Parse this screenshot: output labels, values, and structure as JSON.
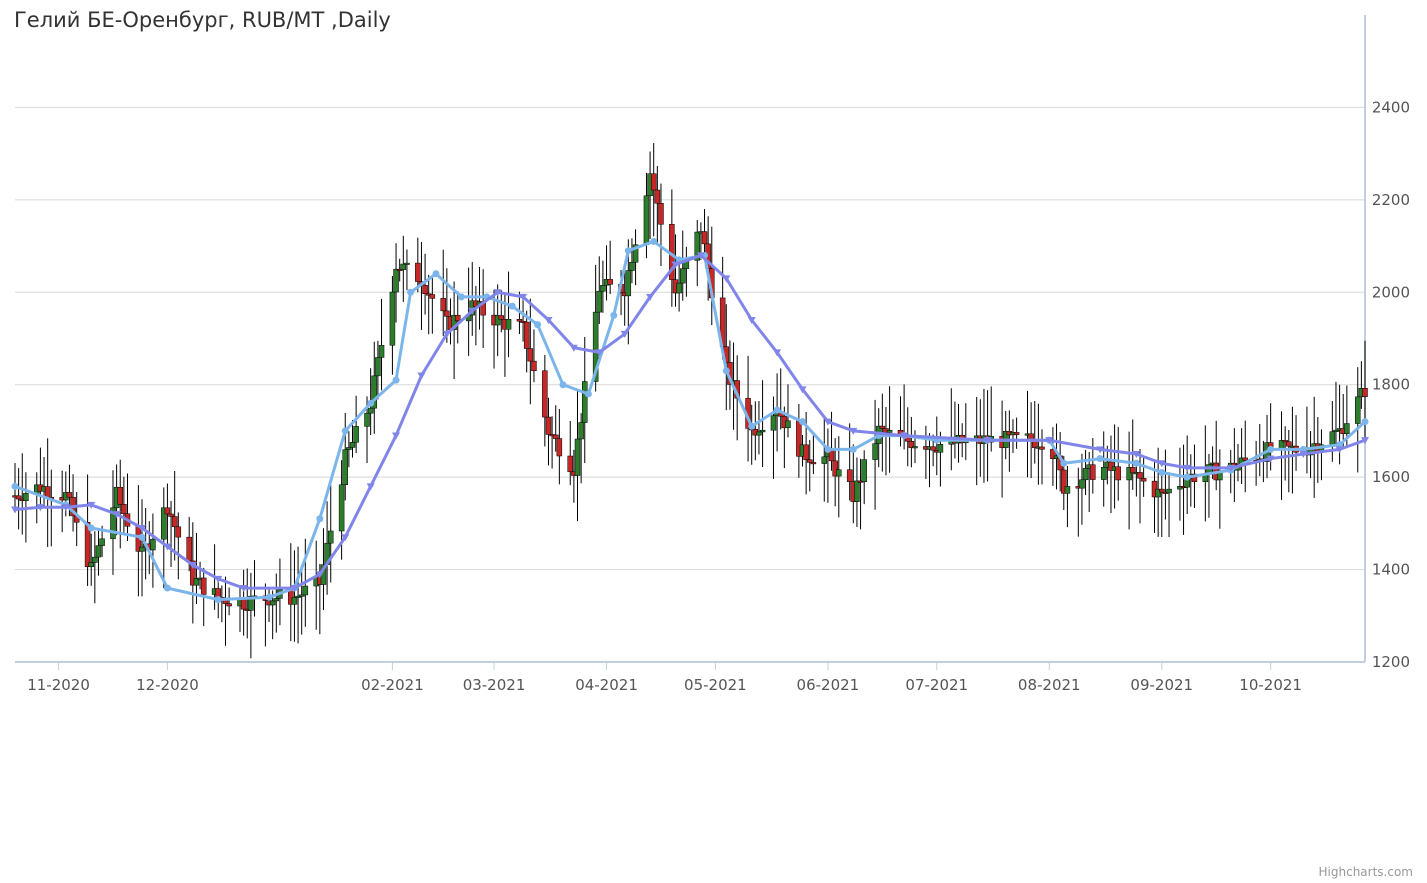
{
  "title": "Гелий БЕ-Оренбург, RUB/MT ,Daily",
  "credits": "Highcharts.com",
  "chart_data": {
    "type": "candlestick",
    "ylim": [
      1200,
      2600
    ],
    "y_ticks": [
      1200,
      1400,
      1600,
      1800,
      2000,
      2200,
      2400
    ],
    "x_ticks": [
      "11-2020",
      "12-2020",
      "02-2021",
      "03-2021",
      "04-2021",
      "05-2021",
      "06-2021",
      "07-2021",
      "08-2021",
      "09-2021",
      "10-2021"
    ],
    "grid": true,
    "colors": {
      "up": "#2c7d2c",
      "down": "#c62828",
      "wick": "#000000",
      "sma_fast": "#7cb5ec",
      "sma_slow": "#8085e9",
      "grid": "#d8d8d8",
      "axis": "#c0d0e0"
    },
    "date_range": [
      "2020-10-20",
      "2021-10-27"
    ],
    "candle_anchors": [
      {
        "date": "2020-10-20",
        "close": 1560
      },
      {
        "date": "2020-10-27",
        "close": 1580
      },
      {
        "date": "2020-11-03",
        "close": 1560
      },
      {
        "date": "2020-11-10",
        "close": 1400
      },
      {
        "date": "2020-11-17",
        "close": 1560
      },
      {
        "date": "2020-11-24",
        "close": 1430
      },
      {
        "date": "2020-12-01",
        "close": 1540
      },
      {
        "date": "2020-12-08",
        "close": 1380
      },
      {
        "date": "2020-12-15",
        "close": 1340
      },
      {
        "date": "2020-12-22",
        "close": 1330
      },
      {
        "date": "2020-12-29",
        "close": 1340
      },
      {
        "date": "2021-01-05",
        "close": 1340
      },
      {
        "date": "2021-01-12",
        "close": 1370
      },
      {
        "date": "2021-01-19",
        "close": 1640
      },
      {
        "date": "2021-01-26",
        "close": 1760
      },
      {
        "date": "2021-02-02",
        "close": 2060
      },
      {
        "date": "2021-02-09",
        "close": 2030
      },
      {
        "date": "2021-02-16",
        "close": 1930
      },
      {
        "date": "2021-02-23",
        "close": 1970
      },
      {
        "date": "2021-03-02",
        "close": 1940
      },
      {
        "date": "2021-03-09",
        "close": 1920
      },
      {
        "date": "2021-03-16",
        "close": 1700
      },
      {
        "date": "2021-03-23",
        "close": 1620
      },
      {
        "date": "2021-03-30",
        "close": 2010
      },
      {
        "date": "2021-04-06",
        "close": 2010
      },
      {
        "date": "2021-04-13",
        "close": 2260
      },
      {
        "date": "2021-04-20",
        "close": 2000
      },
      {
        "date": "2021-04-27",
        "close": 2140
      },
      {
        "date": "2021-05-04",
        "close": 1830
      },
      {
        "date": "2021-05-11",
        "close": 1700
      },
      {
        "date": "2021-05-18",
        "close": 1750
      },
      {
        "date": "2021-05-25",
        "close": 1650
      },
      {
        "date": "2021-06-01",
        "close": 1640
      },
      {
        "date": "2021-06-08",
        "close": 1560
      },
      {
        "date": "2021-06-15",
        "close": 1700
      },
      {
        "date": "2021-06-22",
        "close": 1680
      },
      {
        "date": "2021-07-01",
        "close": 1670
      },
      {
        "date": "2021-07-15",
        "close": 1680
      },
      {
        "date": "2021-08-01",
        "close": 1680
      },
      {
        "date": "2021-08-05",
        "close": 1580
      },
      {
        "date": "2021-08-15",
        "close": 1620
      },
      {
        "date": "2021-08-25",
        "close": 1600
      },
      {
        "date": "2021-09-01",
        "close": 1560
      },
      {
        "date": "2021-09-08",
        "close": 1600
      },
      {
        "date": "2021-09-20",
        "close": 1620
      },
      {
        "date": "2021-10-01",
        "close": 1660
      },
      {
        "date": "2021-10-10",
        "close": 1660
      },
      {
        "date": "2021-10-20",
        "close": 1700
      },
      {
        "date": "2021-10-27",
        "close": 1790
      }
    ],
    "series": [
      {
        "values": [
          {
            "date": "2020-10-20",
            "y": 1580
          },
          {
            "date": "2020-11-03",
            "y": 1540
          },
          {
            "date": "2020-11-10",
            "y": 1490
          },
          {
            "date": "2020-11-24",
            "y": 1470
          },
          {
            "date": "2020-12-01",
            "y": 1360
          },
          {
            "date": "2020-12-15",
            "y": 1335
          },
          {
            "date": "2020-12-29",
            "y": 1340
          },
          {
            "date": "2021-01-05",
            "y": 1360
          },
          {
            "date": "2021-01-12",
            "y": 1510
          },
          {
            "date": "2021-01-19",
            "y": 1700
          },
          {
            "date": "2021-01-26",
            "y": 1760
          },
          {
            "date": "2021-02-02",
            "y": 1810
          },
          {
            "date": "2021-02-06",
            "y": 2000
          },
          {
            "date": "2021-02-13",
            "y": 2040
          },
          {
            "date": "2021-02-20",
            "y": 1990
          },
          {
            "date": "2021-02-27",
            "y": 1990
          },
          {
            "date": "2021-03-06",
            "y": 1970
          },
          {
            "date": "2021-03-13",
            "y": 1930
          },
          {
            "date": "2021-03-20",
            "y": 1800
          },
          {
            "date": "2021-03-27",
            "y": 1780
          },
          {
            "date": "2021-04-03",
            "y": 1950
          },
          {
            "date": "2021-04-07",
            "y": 2090
          },
          {
            "date": "2021-04-14",
            "y": 2110
          },
          {
            "date": "2021-04-21",
            "y": 2070
          },
          {
            "date": "2021-04-28",
            "y": 2080
          },
          {
            "date": "2021-05-04",
            "y": 1830
          },
          {
            "date": "2021-05-11",
            "y": 1710
          },
          {
            "date": "2021-05-18",
            "y": 1745
          },
          {
            "date": "2021-05-25",
            "y": 1720
          },
          {
            "date": "2021-06-01",
            "y": 1660
          },
          {
            "date": "2021-06-08",
            "y": 1660
          },
          {
            "date": "2021-06-15",
            "y": 1690
          },
          {
            "date": "2021-06-22",
            "y": 1690
          },
          {
            "date": "2021-07-01",
            "y": 1680
          },
          {
            "date": "2021-07-15",
            "y": 1680
          },
          {
            "date": "2021-08-01",
            "y": 1680
          },
          {
            "date": "2021-08-05",
            "y": 1630
          },
          {
            "date": "2021-08-15",
            "y": 1640
          },
          {
            "date": "2021-08-25",
            "y": 1630
          },
          {
            "date": "2021-09-01",
            "y": 1610
          },
          {
            "date": "2021-09-08",
            "y": 1600
          },
          {
            "date": "2021-09-20",
            "y": 1615
          },
          {
            "date": "2021-10-01",
            "y": 1660
          },
          {
            "date": "2021-10-10",
            "y": 1660
          },
          {
            "date": "2021-10-20",
            "y": 1670
          },
          {
            "date": "2021-10-27",
            "y": 1720
          }
        ]
      },
      {
        "values": [
          {
            "date": "2020-10-20",
            "y": 1530
          },
          {
            "date": "2020-10-27",
            "y": 1535
          },
          {
            "date": "2020-11-03",
            "y": 1535
          },
          {
            "date": "2020-11-10",
            "y": 1540
          },
          {
            "date": "2020-11-17",
            "y": 1520
          },
          {
            "date": "2020-11-24",
            "y": 1490
          },
          {
            "date": "2020-12-01",
            "y": 1450
          },
          {
            "date": "2020-12-08",
            "y": 1410
          },
          {
            "date": "2020-12-15",
            "y": 1380
          },
          {
            "date": "2020-12-22",
            "y": 1360
          },
          {
            "date": "2021-01-05",
            "y": 1360
          },
          {
            "date": "2021-01-12",
            "y": 1390
          },
          {
            "date": "2021-01-19",
            "y": 1470
          },
          {
            "date": "2021-01-26",
            "y": 1580
          },
          {
            "date": "2021-02-02",
            "y": 1690
          },
          {
            "date": "2021-02-09",
            "y": 1820
          },
          {
            "date": "2021-02-16",
            "y": 1910
          },
          {
            "date": "2021-02-23",
            "y": 1960
          },
          {
            "date": "2021-03-02",
            "y": 2000
          },
          {
            "date": "2021-03-09",
            "y": 1990
          },
          {
            "date": "2021-03-16",
            "y": 1940
          },
          {
            "date": "2021-03-23",
            "y": 1880
          },
          {
            "date": "2021-03-30",
            "y": 1870
          },
          {
            "date": "2021-04-06",
            "y": 1910
          },
          {
            "date": "2021-04-13",
            "y": 1990
          },
          {
            "date": "2021-04-20",
            "y": 2060
          },
          {
            "date": "2021-04-27",
            "y": 2080
          },
          {
            "date": "2021-05-04",
            "y": 2030
          },
          {
            "date": "2021-05-11",
            "y": 1940
          },
          {
            "date": "2021-05-18",
            "y": 1870
          },
          {
            "date": "2021-05-25",
            "y": 1790
          },
          {
            "date": "2021-06-01",
            "y": 1720
          },
          {
            "date": "2021-06-08",
            "y": 1700
          },
          {
            "date": "2021-06-22",
            "y": 1690
          },
          {
            "date": "2021-07-15",
            "y": 1680
          },
          {
            "date": "2021-08-01",
            "y": 1680
          },
          {
            "date": "2021-08-15",
            "y": 1660
          },
          {
            "date": "2021-08-25",
            "y": 1650
          },
          {
            "date": "2021-09-01",
            "y": 1630
          },
          {
            "date": "2021-09-08",
            "y": 1620
          },
          {
            "date": "2021-09-20",
            "y": 1620
          },
          {
            "date": "2021-10-01",
            "y": 1640
          },
          {
            "date": "2021-10-10",
            "y": 1650
          },
          {
            "date": "2021-10-20",
            "y": 1660
          },
          {
            "date": "2021-10-27",
            "y": 1680
          }
        ]
      }
    ]
  }
}
